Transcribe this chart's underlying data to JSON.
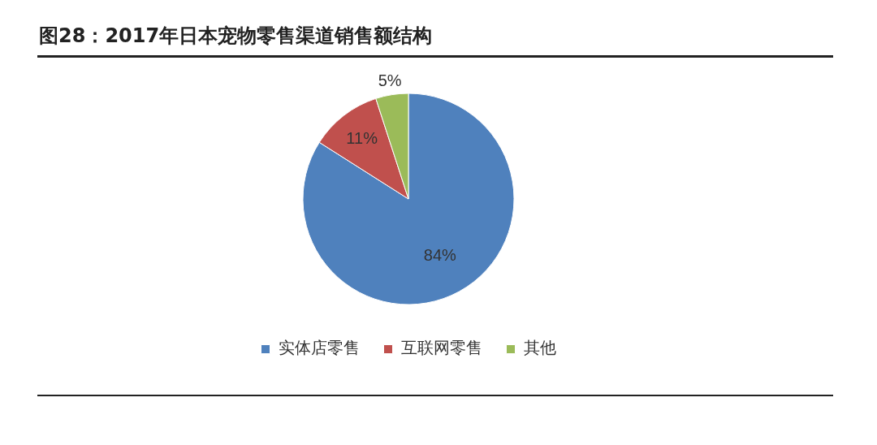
{
  "chart_data": {
    "type": "pie",
    "title": "图28：2017年日本宠物零售渠道销售额结构",
    "categories": [
      "实体店零售",
      "互联网零售",
      "其他"
    ],
    "values": [
      84,
      11,
      5
    ],
    "colors": [
      "#4f81bd",
      "#c0504d",
      "#9bbb59"
    ],
    "value_labels": [
      "84%",
      "11%",
      "5%"
    ],
    "legend": "bottom"
  }
}
